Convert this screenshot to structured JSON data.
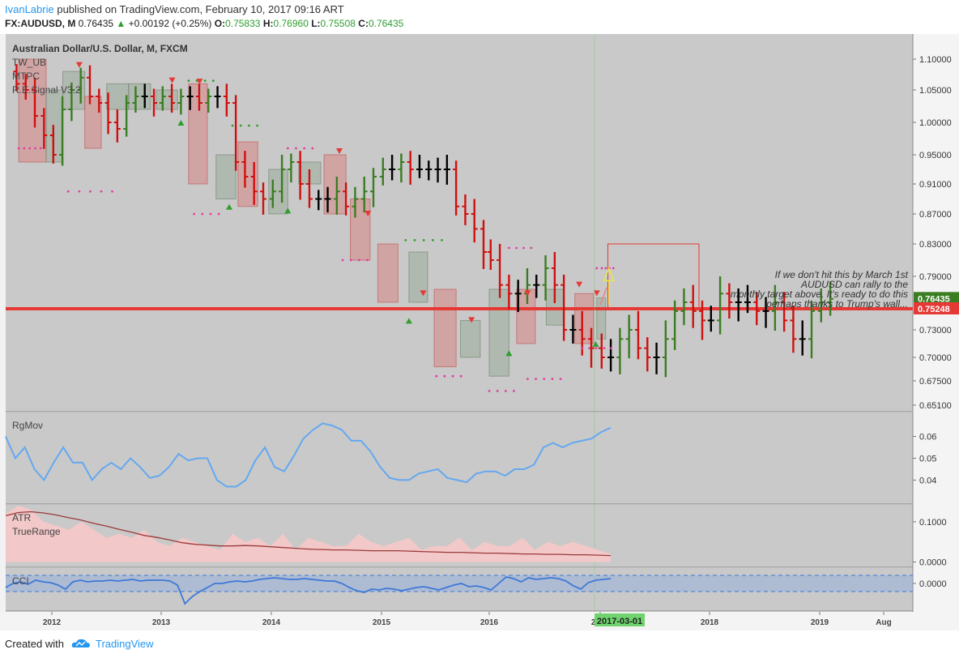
{
  "header": {
    "author": "IvanLabrie",
    "published": "published on TradingView.com, February 10, 2017 09:16 ART",
    "symbol": "FX:AUDUSD, M",
    "price": "0.76435",
    "change": "+0.00192 (+0.25%)",
    "o_label": "O:",
    "o": "0.75833",
    "h_label": "H:",
    "h": "0.76960",
    "l_label": "L:",
    "l": "0.75508",
    "c_label": "C:",
    "c": "0.76435"
  },
  "legend": {
    "instrument": "Australian Dollar/U.S. Dollar, M, FXCM",
    "ind1": "TW_UB",
    "ind2": "MTPC",
    "ind3": "R.E.Signal V3.2",
    "rgmov": "RgMov",
    "atr": "ATR",
    "truerange": "TrueRange",
    "cci": "CCI"
  },
  "annotation": [
    "If we don't hit this by March 1st",
    "AUDUSD can rally to the",
    "monthly target above. It's ready to do this",
    "perhaps thanks to Trump's wall..."
  ],
  "footer": {
    "created": "Created with",
    "brand": "TradingView"
  },
  "colors": {
    "up": "#3a7d22",
    "down": "#d01010",
    "neutral": "#000000",
    "line": "#e53935",
    "rgmov": "#64a8f0",
    "cci": "#3d78d8",
    "atr": "#9c3a3a",
    "tr": "#f2c8c8"
  },
  "chart_data": [
    {
      "type": "ohlc",
      "title": "Australian Dollar/U.S. Dollar, M, FXCM",
      "price_scale": [
        "1.10000",
        "1.05000",
        "1.00000",
        "0.95000",
        "0.91000",
        "0.87000",
        "0.83000",
        "0.79000",
        "0.73000",
        "0.70000",
        "0.67500",
        "0.65100"
      ],
      "price_tags": {
        "last": "0.76435",
        "level": "0.75248"
      },
      "time_scale": [
        "2012",
        "2013",
        "2014",
        "2015",
        "2016",
        "2017",
        "2018",
        "2019",
        "Aug"
      ],
      "time_marker": "2017-03-01",
      "horizontal_level": 0.75248,
      "ylim": [
        0.64,
        1.13
      ],
      "closes": [
        1.06,
        1.05,
        1.01,
        0.98,
        0.95,
        1.02,
        1.05,
        1.07,
        1.04,
        1.03,
        1.0,
        0.99,
        1.03,
        1.04,
        1.04,
        1.03,
        1.04,
        1.03,
        1.04,
        1.04,
        1.03,
        1.04,
        1.04,
        1.03,
        0.94,
        0.92,
        0.9,
        0.89,
        0.9,
        0.93,
        0.94,
        0.91,
        0.89,
        0.89,
        0.89,
        0.9,
        0.88,
        0.89,
        0.9,
        0.92,
        0.93,
        0.93,
        0.94,
        0.93,
        0.93,
        0.93,
        0.93,
        0.93,
        0.88,
        0.87,
        0.85,
        0.82,
        0.81,
        0.78,
        0.77,
        0.77,
        0.78,
        0.78,
        0.8,
        0.78,
        0.73,
        0.73,
        0.72,
        0.71,
        0.7,
        0.7,
        0.72,
        0.73,
        0.71,
        0.7,
        0.7,
        0.72,
        0.75,
        0.76,
        0.75,
        0.74,
        0.74,
        0.77,
        0.76,
        0.76,
        0.76,
        0.75,
        0.75,
        0.76,
        0.74,
        0.72,
        0.72,
        0.75,
        0.76,
        0.764
      ],
      "rgmov": {
        "ticks": [
          "0.06",
          "0.05",
          "0.04"
        ],
        "ylim": [
          0.032,
          0.068
        ],
        "values": [
          0.06,
          0.05,
          0.055,
          0.045,
          0.04,
          0.048,
          0.055,
          0.048,
          0.048,
          0.04,
          0.045,
          0.048,
          0.045,
          0.05,
          0.046,
          0.041,
          0.042,
          0.046,
          0.052,
          0.049,
          0.05,
          0.05,
          0.04,
          0.037,
          0.037,
          0.04,
          0.049,
          0.055,
          0.046,
          0.044,
          0.051,
          0.059,
          0.063,
          0.066,
          0.065,
          0.063,
          0.058,
          0.058,
          0.053,
          0.046,
          0.041,
          0.04,
          0.04,
          0.043,
          0.044,
          0.045,
          0.041,
          0.04,
          0.039,
          0.043,
          0.044,
          0.044,
          0.042,
          0.045,
          0.045,
          0.047,
          0.055,
          0.057,
          0.055,
          0.057,
          0.058,
          0.059,
          0.062,
          0.064
        ]
      },
      "atr": {
        "ticks": [
          "0.1000",
          "0.0000"
        ],
        "ylim": [
          -0.005,
          0.13
        ],
        "atr_values": [
          0.115,
          0.123,
          0.125,
          0.122,
          0.117,
          0.11,
          0.104,
          0.096,
          0.089,
          0.081,
          0.074,
          0.066,
          0.061,
          0.055,
          0.048,
          0.044,
          0.042,
          0.04,
          0.04,
          0.041,
          0.04,
          0.038,
          0.036,
          0.034,
          0.032,
          0.031,
          0.03,
          0.03,
          0.029,
          0.028,
          0.028,
          0.028,
          0.027,
          0.026,
          0.025,
          0.024,
          0.024,
          0.023,
          0.022,
          0.022,
          0.021,
          0.02,
          0.02,
          0.019,
          0.019,
          0.018,
          0.018,
          0.017,
          0.016
        ],
        "tr_values": [
          0.12,
          0.14,
          0.13,
          0.1,
          0.09,
          0.08,
          0.1,
          0.08,
          0.06,
          0.07,
          0.06,
          0.08,
          0.05,
          0.04,
          0.06,
          0.05,
          0.04,
          0.03,
          0.07,
          0.05,
          0.06,
          0.04,
          0.07,
          0.03,
          0.06,
          0.05,
          0.04,
          0.04,
          0.07,
          0.05,
          0.04,
          0.05,
          0.06,
          0.03,
          0.04,
          0.04,
          0.06,
          0.03,
          0.05,
          0.04,
          0.04,
          0.06,
          0.03,
          0.05,
          0.04,
          0.05,
          0.04,
          0.03,
          0.02
        ]
      },
      "cci": {
        "ticks": [
          "0.0000"
        ],
        "ylim": [
          -3,
          1.5
        ],
        "values": [
          -0.5,
          0.0,
          0.2,
          -0.1,
          0.4,
          0.2,
          0.1,
          -0.2,
          -0.7,
          0.2,
          0.4,
          0.2,
          0.3,
          0.3,
          0.4,
          0.3,
          0.4,
          0.5,
          0.3,
          0.4,
          0.4,
          0.4,
          0.3,
          -0.2,
          -2.5,
          -1.6,
          -1.0,
          -0.5,
          0.0,
          0.0,
          0.2,
          0.3,
          0.2,
          0.3,
          0.5,
          0.6,
          0.7,
          0.6,
          0.5,
          0.5,
          0.6,
          0.5,
          0.4,
          0.3,
          0.3,
          0.0,
          -0.5,
          -0.9,
          -1.1,
          -0.7,
          -0.8,
          -0.6,
          -0.7,
          -0.9,
          -0.7,
          -0.5,
          -0.4,
          -0.6,
          -0.8,
          -0.5,
          -0.2,
          0.0,
          -0.4,
          -0.3,
          -0.5,
          -0.8,
          0.0,
          0.8,
          0.6,
          0.2,
          0.7,
          0.5,
          0.6,
          0.7,
          0.6,
          0.3,
          -0.3,
          -0.7,
          0.1,
          0.4,
          0.5,
          0.6
        ]
      }
    }
  ]
}
